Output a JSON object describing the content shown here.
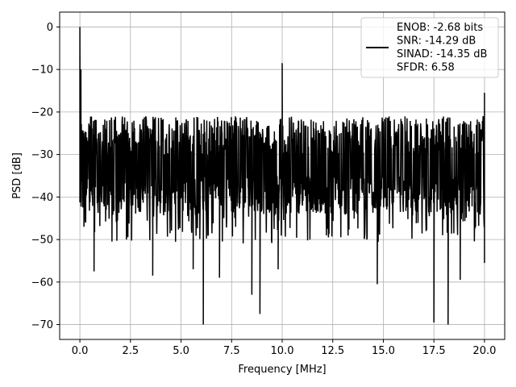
{
  "chart_data": {
    "type": "line",
    "xlabel": "Frequency [MHz]",
    "ylabel": "PSD [dB]",
    "xlim": [
      -1.0,
      21.0
    ],
    "ylim": [
      -73.5,
      3.5
    ],
    "xticks": [
      0.0,
      2.5,
      5.0,
      7.5,
      10.0,
      12.5,
      15.0,
      17.5,
      20.0
    ],
    "xtick_labels": [
      "0.0",
      "2.5",
      "5.0",
      "7.5",
      "10.0",
      "12.5",
      "15.0",
      "17.5",
      "20.0"
    ],
    "yticks": [
      0,
      -10,
      -20,
      -30,
      -40,
      -50,
      -60,
      -70
    ],
    "ytick_labels": [
      "0",
      "−10",
      "−20",
      "−30",
      "−40",
      "−50",
      "−60",
      "−70"
    ],
    "grid": true,
    "legend_position": "top-right",
    "legend": [
      "ENOB: -2.68 bits",
      "SNR: -14.29 dB",
      "SINAD: -14.35 dB",
      "SFDR: 6.58"
    ],
    "series_color": "#000000",
    "series": [
      {
        "x_start": 0.0,
        "x_end": 20.0,
        "noise_upper": -21,
        "noise_lower": -44,
        "peaks": [
          {
            "x": 0.0,
            "y": 0.0
          },
          {
            "x": 0.05,
            "y": -10
          },
          {
            "x": 10.0,
            "y": -8.5
          },
          {
            "x": 20.0,
            "y": -15.5
          }
        ],
        "dips": [
          {
            "x": 0.2,
            "y": -47
          },
          {
            "x": 0.7,
            "y": -57.5
          },
          {
            "x": 2.3,
            "y": -50
          },
          {
            "x": 3.6,
            "y": -58.5
          },
          {
            "x": 5.6,
            "y": -57
          },
          {
            "x": 6.1,
            "y": -70
          },
          {
            "x": 6.9,
            "y": -59
          },
          {
            "x": 8.5,
            "y": -63
          },
          {
            "x": 8.9,
            "y": -67.5
          },
          {
            "x": 9.8,
            "y": -57
          },
          {
            "x": 14.7,
            "y": -60.5
          },
          {
            "x": 17.5,
            "y": -69.5
          },
          {
            "x": 18.2,
            "y": -70
          },
          {
            "x": 18.8,
            "y": -59.5
          },
          {
            "x": 20.0,
            "y": -55.5
          }
        ]
      }
    ]
  }
}
